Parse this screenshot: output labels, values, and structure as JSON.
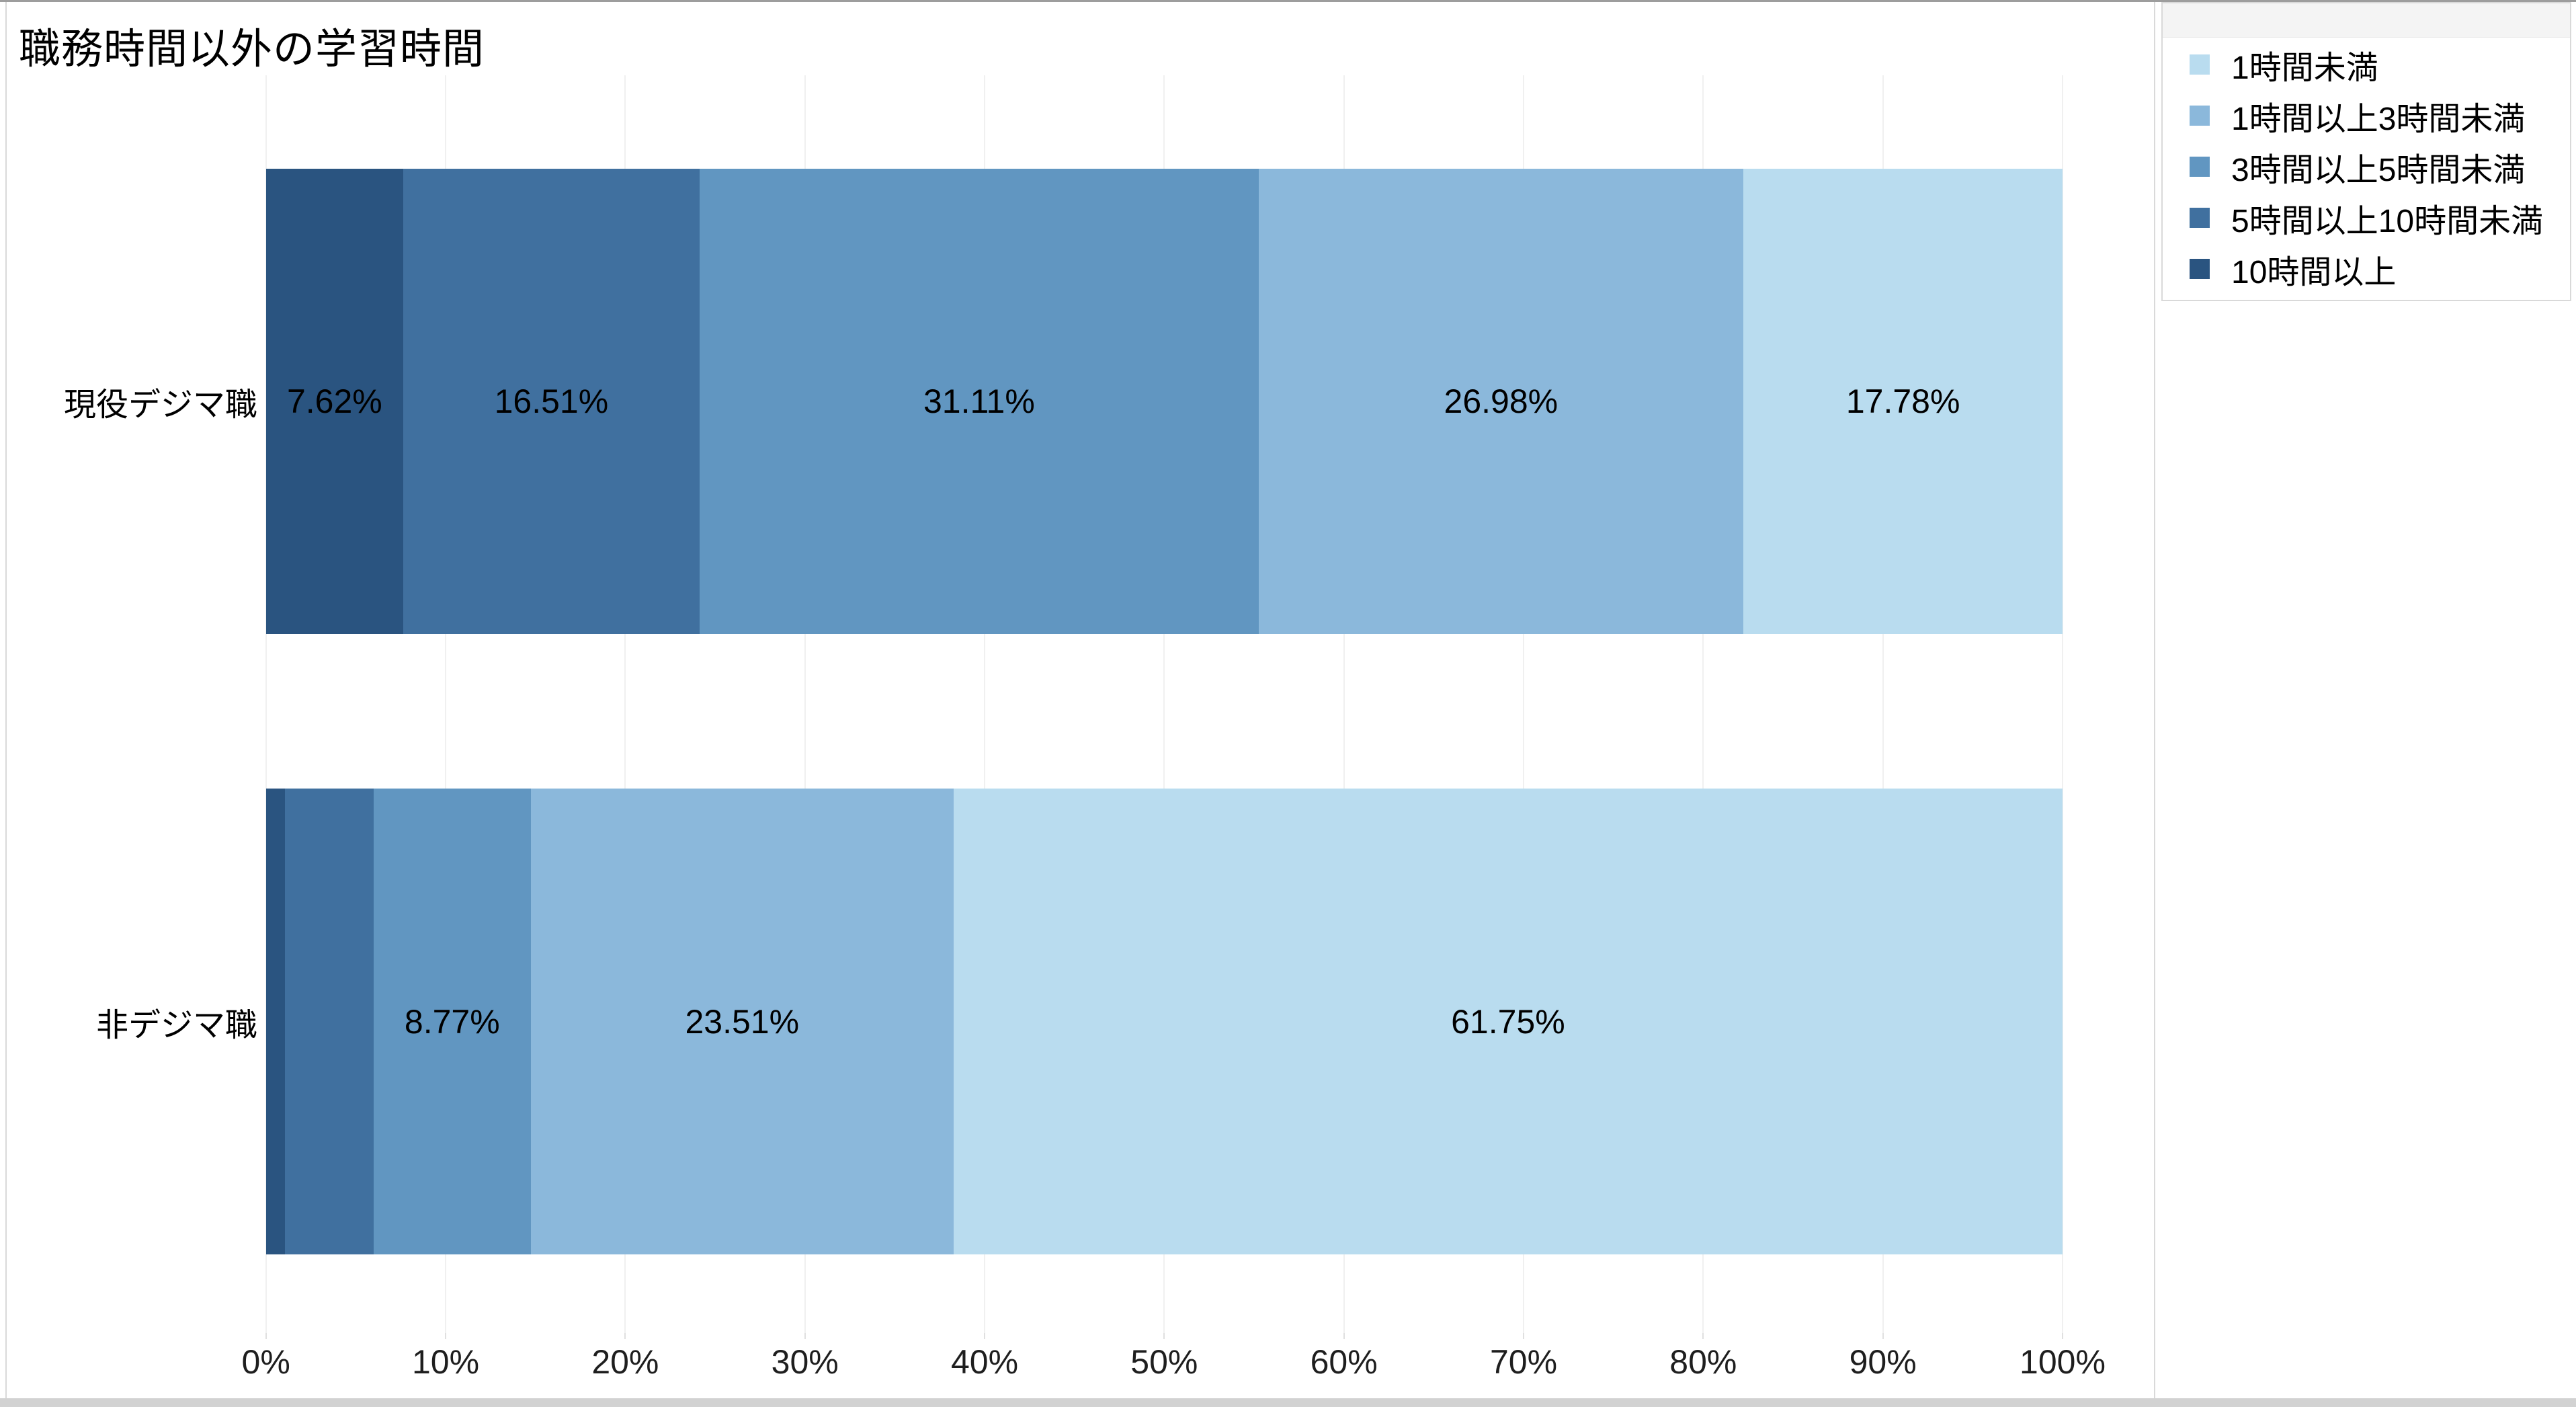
{
  "page": {
    "title": "職務時間以外の学習時間"
  },
  "chart_data": {
    "type": "bar",
    "orientation": "horizontal",
    "stacked": true,
    "unit": "percent",
    "title": "職務時間以外の学習時間",
    "categories": [
      "現役デジマ職",
      "非デジマ職"
    ],
    "series": [
      {
        "name": "10時間以上",
        "color": "#2a5480",
        "values": [
          7.62,
          1.05
        ],
        "labels": [
          "7.62%",
          ""
        ]
      },
      {
        "name": "5時間以上10時間未満",
        "color": "#40709f",
        "values": [
          16.51,
          4.92
        ],
        "labels": [
          "16.51%",
          ""
        ]
      },
      {
        "name": "3時間以上5時間未満",
        "color": "#6196c1",
        "values": [
          31.11,
          8.77
        ],
        "labels": [
          "31.11%",
          "8.77%"
        ]
      },
      {
        "name": "1時間以上3時間未満",
        "color": "#8bb8db",
        "values": [
          26.98,
          23.51
        ],
        "labels": [
          "26.98%",
          "23.51%"
        ]
      },
      {
        "name": "1時間未満",
        "color": "#b9dcef",
        "values": [
          17.78,
          61.75
        ],
        "labels": [
          "17.78%",
          "61.75%"
        ]
      }
    ],
    "xlim": [
      0,
      100
    ],
    "x_ticks": [
      "0%",
      "10%",
      "20%",
      "30%",
      "40%",
      "50%",
      "60%",
      "70%",
      "80%",
      "90%",
      "100%"
    ],
    "grid": true,
    "legend_position": "top-right",
    "legend": [
      {
        "label": "1時間未満",
        "color": "#b9dcef"
      },
      {
        "label": "1時間以上3時間未満",
        "color": "#8bb8db"
      },
      {
        "label": "3時間以上5時間未満",
        "color": "#6196c1"
      },
      {
        "label": "5時間以上10時間未満",
        "color": "#40709f"
      },
      {
        "label": "10時間以上",
        "color": "#2a5480"
      }
    ]
  }
}
